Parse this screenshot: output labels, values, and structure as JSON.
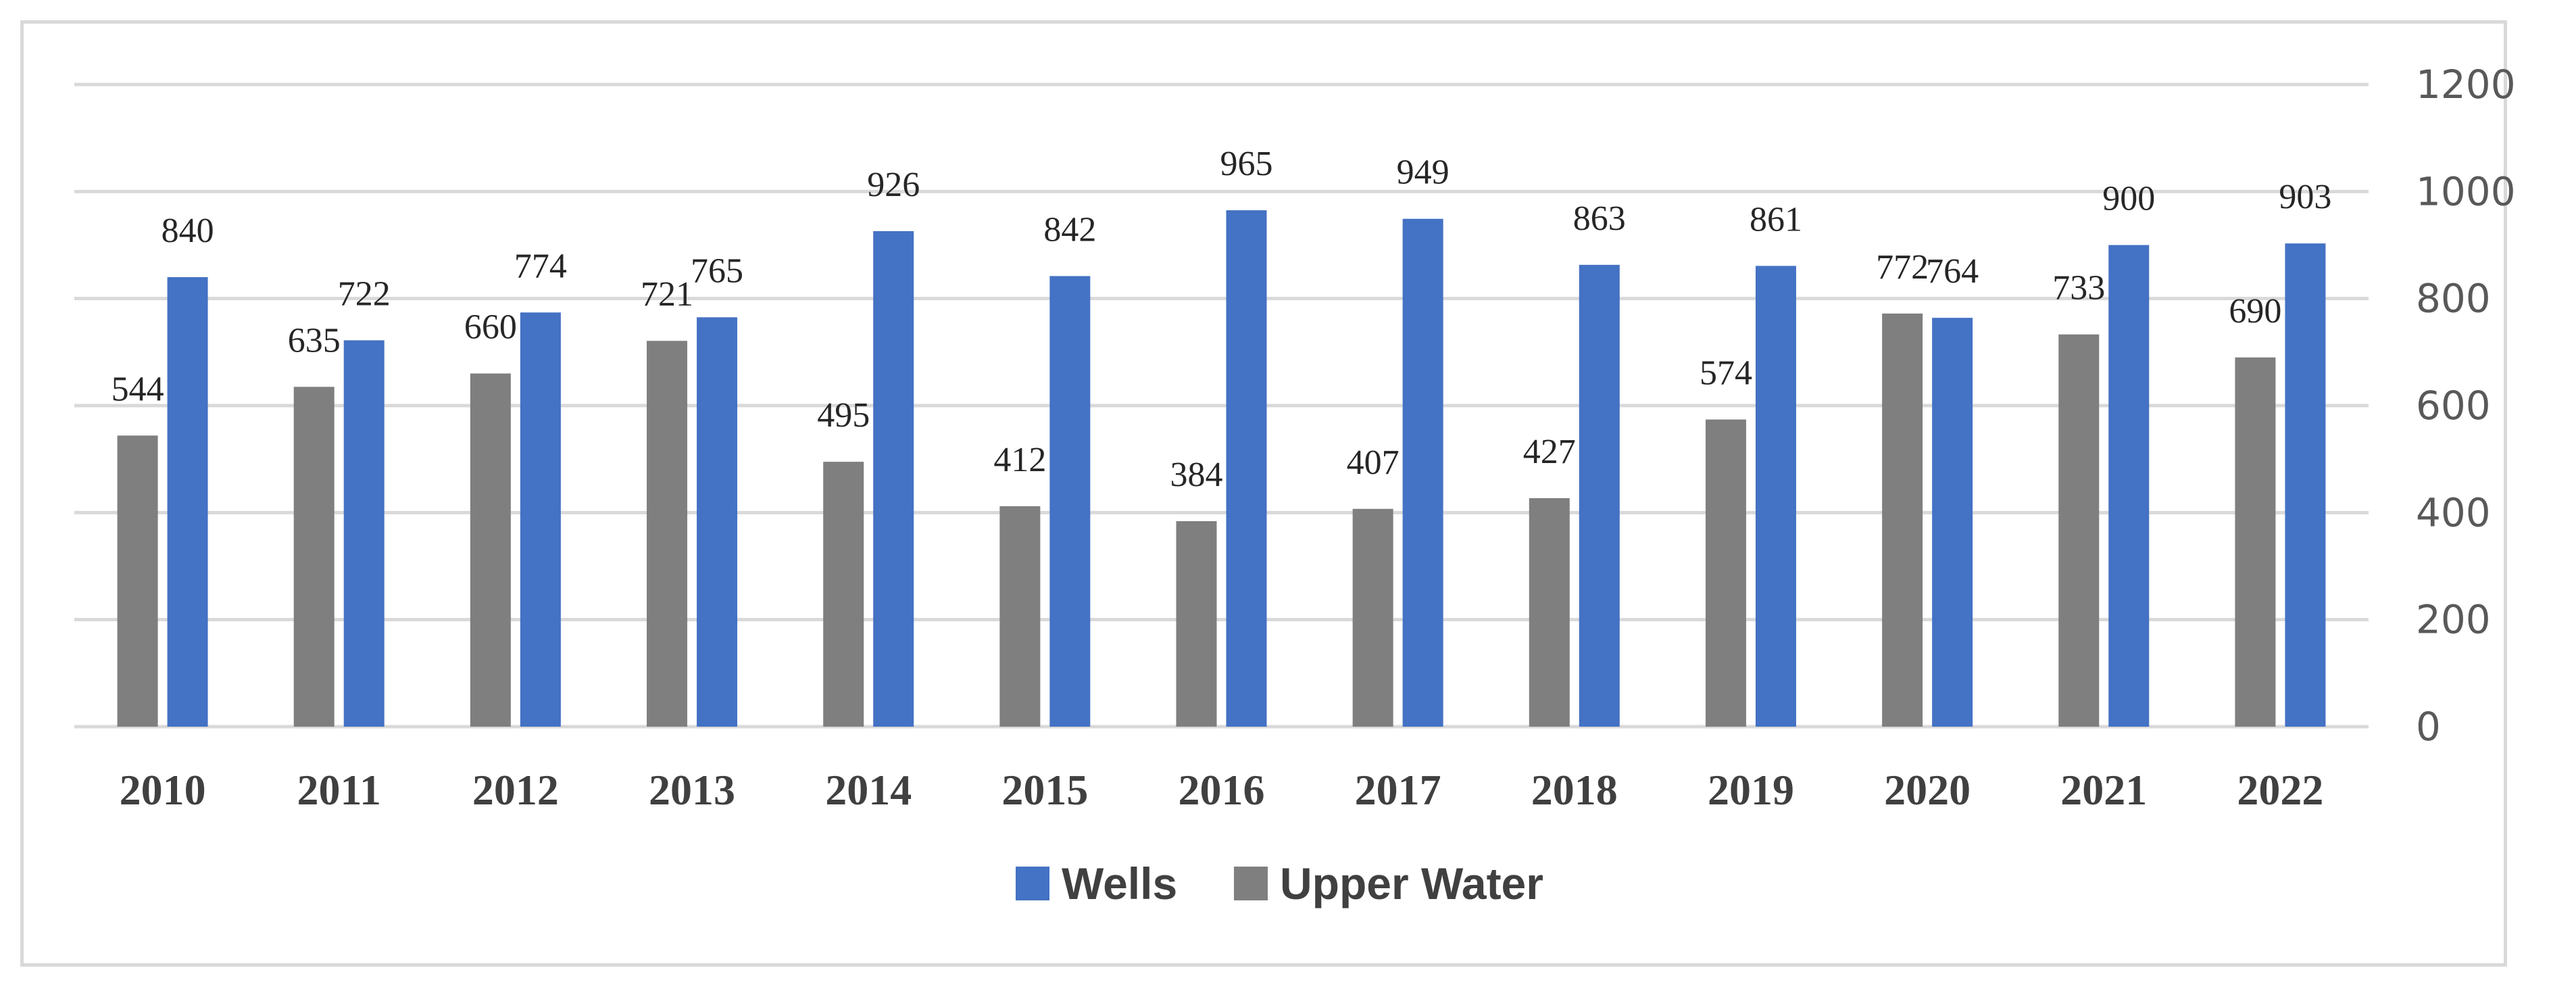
{
  "chart_data": {
    "type": "bar",
    "title": "",
    "xlabel": "",
    "ylabel": "",
    "categories": [
      "2010",
      "2011",
      "2012",
      "2013",
      "2014",
      "2015",
      "2016",
      "2017",
      "2018",
      "2019",
      "2020",
      "2021",
      "2022"
    ],
    "series": [
      {
        "name": "Upper Water",
        "color": "#7f7f7f",
        "values": [
          544,
          635,
          660,
          721,
          495,
          412,
          384,
          407,
          427,
          574,
          772,
          733,
          690
        ]
      },
      {
        "name": "Wells",
        "color": "#4472c4",
        "values": [
          840,
          722,
          774,
          765,
          926,
          842,
          965,
          949,
          863,
          861,
          764,
          900,
          903
        ]
      }
    ],
    "ylim": [
      0,
      1200
    ],
    "yticks": [
      "0",
      "200",
      "400",
      "600",
      "800",
      "1000",
      "1200"
    ],
    "y_axis_side": "right",
    "grid": true,
    "legend": {
      "position": "bottom",
      "entries": [
        {
          "name": "Wells",
          "color": "#4472c4"
        },
        {
          "name": "Upper Water",
          "color": "#7f7f7f"
        }
      ]
    }
  }
}
